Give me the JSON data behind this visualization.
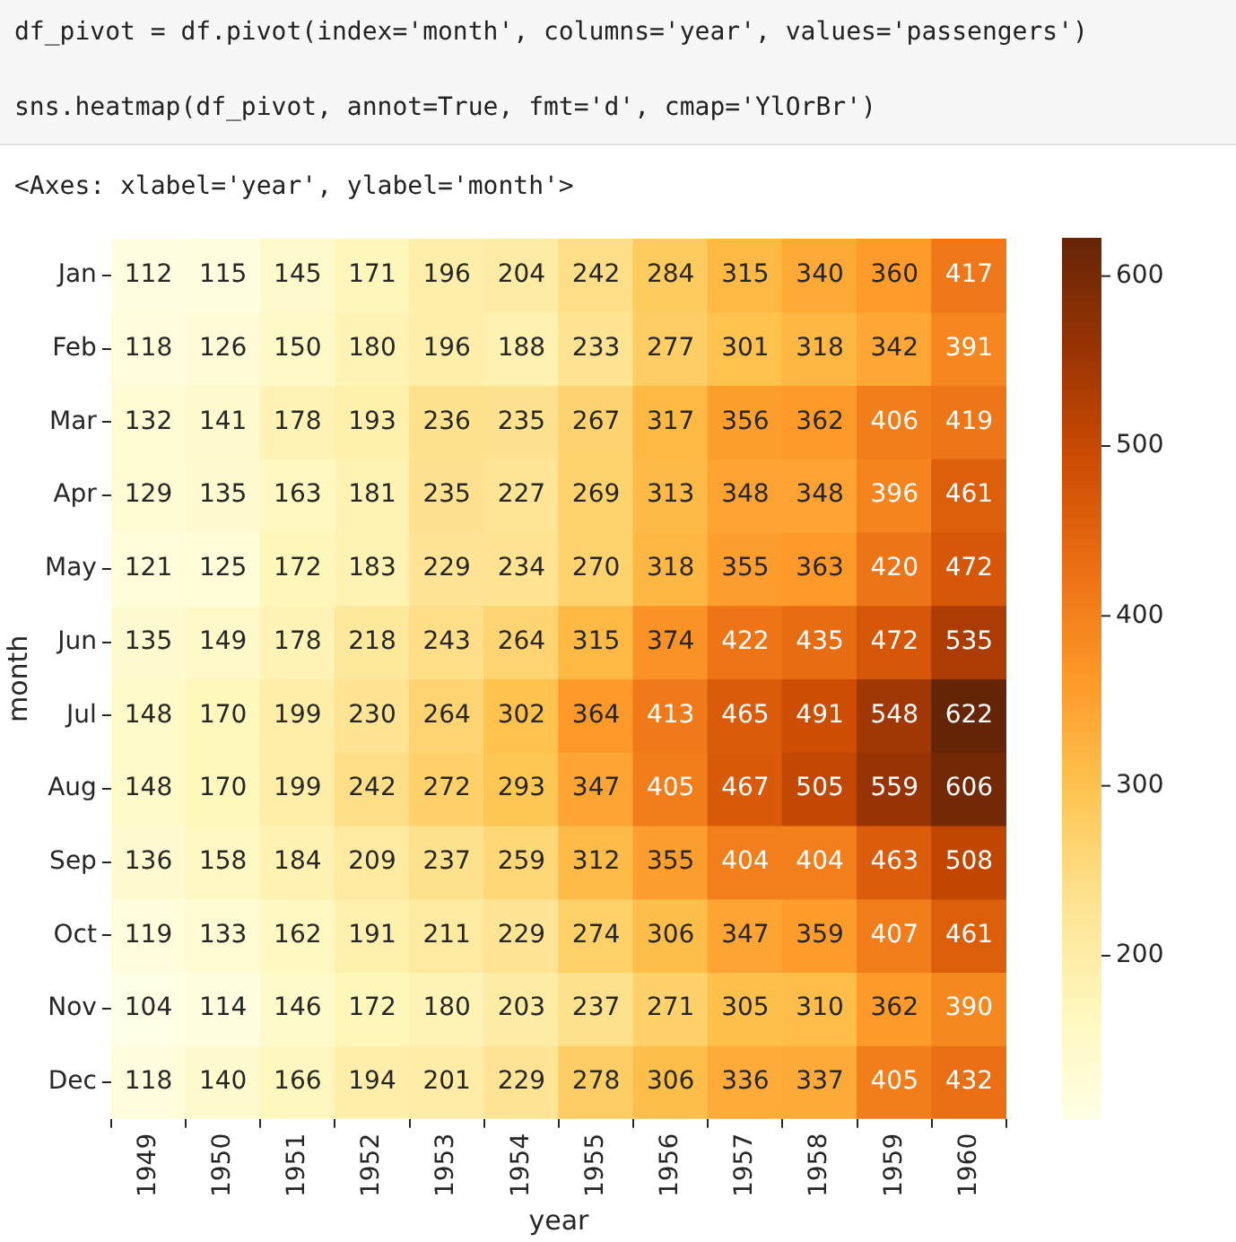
{
  "chart_data": {
    "type": "heatmap",
    "xlabel": "year",
    "ylabel": "month",
    "annotations": [
      "df_pivot = df.pivot(index='month', columns='year', values='passengers')",
      "sns.heatmap(df_pivot, annot=True, fmt='d', cmap='YlOrBr')",
      "<Axes: xlabel='year', ylabel='month'>"
    ],
    "categories": [
      "1949",
      "1950",
      "1951",
      "1952",
      "1953",
      "1954",
      "1955",
      "1956",
      "1957",
      "1958",
      "1959",
      "1960"
    ],
    "y_categories": [
      "Jan",
      "Feb",
      "Mar",
      "Apr",
      "May",
      "Jun",
      "Jul",
      "Aug",
      "Sep",
      "Oct",
      "Nov",
      "Dec"
    ],
    "cells": [
      [
        112,
        115,
        145,
        171,
        196,
        204,
        242,
        284,
        315,
        340,
        360,
        417
      ],
      [
        118,
        126,
        150,
        180,
        196,
        188,
        233,
        277,
        301,
        318,
        342,
        391
      ],
      [
        132,
        141,
        178,
        193,
        236,
        235,
        267,
        317,
        356,
        362,
        406,
        419
      ],
      [
        129,
        135,
        163,
        181,
        235,
        227,
        269,
        313,
        348,
        348,
        396,
        461
      ],
      [
        121,
        125,
        172,
        183,
        229,
        234,
        270,
        318,
        355,
        363,
        420,
        472
      ],
      [
        135,
        149,
        178,
        218,
        243,
        264,
        315,
        374,
        422,
        435,
        472,
        535
      ],
      [
        148,
        170,
        199,
        230,
        264,
        302,
        364,
        413,
        465,
        491,
        548,
        622
      ],
      [
        148,
        170,
        199,
        242,
        272,
        293,
        347,
        405,
        467,
        505,
        559,
        606
      ],
      [
        136,
        158,
        184,
        209,
        237,
        259,
        312,
        355,
        404,
        404,
        463,
        508
      ],
      [
        119,
        133,
        162,
        191,
        211,
        229,
        274,
        306,
        347,
        359,
        407,
        461
      ],
      [
        104,
        114,
        146,
        172,
        180,
        203,
        237,
        271,
        305,
        310,
        362,
        390
      ],
      [
        118,
        140,
        166,
        194,
        201,
        229,
        278,
        306,
        336,
        337,
        405,
        432
      ]
    ],
    "clim": [
      104,
      622
    ],
    "cticks": [
      200,
      300,
      400,
      500,
      600
    ],
    "data_labels": true
  }
}
